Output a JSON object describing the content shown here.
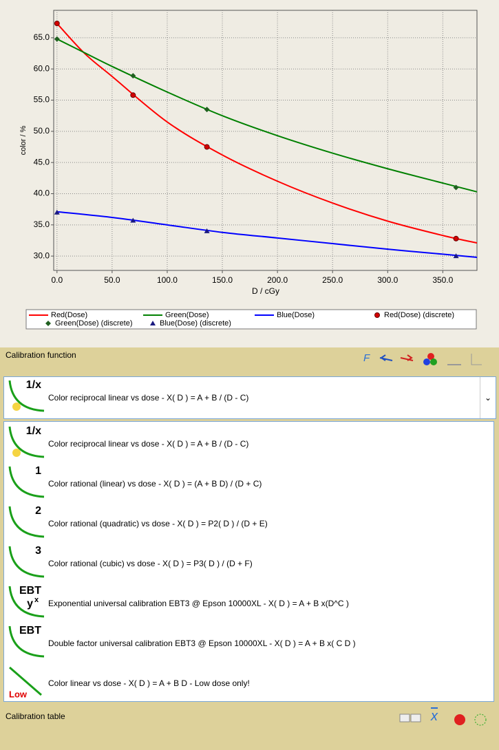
{
  "chart_data": {
    "type": "line",
    "y_label": "color / %",
    "x_label": "D / cGy",
    "xlim": [
      -3,
      381
    ],
    "ylim": [
      27.7,
      69.4
    ],
    "grid": true,
    "xticks": [
      {
        "value": 0,
        "label": "0.0"
      },
      {
        "value": 50,
        "label": "50.0"
      },
      {
        "value": 100,
        "label": "100.0"
      },
      {
        "value": 150,
        "label": "150.0"
      },
      {
        "value": 200,
        "label": "200.0"
      },
      {
        "value": 250,
        "label": "250.0"
      },
      {
        "value": 300,
        "label": "300.0"
      },
      {
        "value": 350,
        "label": "350.0"
      }
    ],
    "yticks": [
      {
        "value": 30,
        "label": "30.0"
      },
      {
        "value": 35,
        "label": "35.0"
      },
      {
        "value": 40,
        "label": "40.0"
      },
      {
        "value": 45,
        "label": "45.0"
      },
      {
        "value": 50,
        "label": "50.0"
      },
      {
        "value": 55,
        "label": "55.0"
      },
      {
        "value": 60,
        "label": "60.0"
      },
      {
        "value": 65,
        "label": "65.0"
      }
    ],
    "series": [
      {
        "name": "Red(Dose)",
        "color": "#ff0000",
        "marker": "line",
        "x": [
          0,
          25,
          50,
          100,
          150,
          200,
          250,
          300,
          350,
          381
        ],
        "values": [
          67.3,
          62.5,
          58.8,
          51.5,
          46.2,
          42.0,
          38.5,
          35.6,
          33.3,
          32.1
        ]
      },
      {
        "name": "Green(Dose)",
        "color": "#008000",
        "marker": "line",
        "x": [
          0,
          25,
          50,
          100,
          150,
          200,
          250,
          300,
          350,
          381
        ],
        "values": [
          64.8,
          62.6,
          60.4,
          56.3,
          52.5,
          49.3,
          46.5,
          44.0,
          41.7,
          40.3
        ]
      },
      {
        "name": "Blue(Dose)",
        "color": "#0000ff",
        "marker": "line",
        "x": [
          0,
          50,
          100,
          150,
          200,
          250,
          300,
          350,
          381
        ],
        "values": [
          37.1,
          36.2,
          35.0,
          33.8,
          32.9,
          32.0,
          31.1,
          30.3,
          29.8
        ]
      },
      {
        "name": "Red(Dose) (discrete)",
        "color": "#d40000",
        "marker": "circle",
        "x": [
          0,
          69,
          136,
          362
        ],
        "values": [
          67.3,
          55.8,
          47.5,
          32.8
        ]
      },
      {
        "name": "Green(Dose) (discrete)",
        "color": "#206020",
        "marker": "diamond",
        "x": [
          0,
          69,
          136,
          362
        ],
        "values": [
          64.8,
          58.9,
          53.5,
          41.0
        ]
      },
      {
        "name": "Blue(Dose) (discrete)",
        "color": "#1a1a80",
        "marker": "triangle",
        "x": [
          0,
          69,
          136,
          362
        ],
        "values": [
          37.0,
          35.7,
          34.0,
          30.0
        ]
      }
    ]
  },
  "panel": {
    "calibration_function": "Calibration function",
    "function_label": "F",
    "calibration_table": "Calibration table",
    "mean_label": "x"
  },
  "dropdown": {
    "selected": {
      "icon": "1/x",
      "text": "Color reciprocal linear vs dose - X( D ) = A + B / (D - C)"
    },
    "items": [
      {
        "icon": "1/x",
        "text": "Color reciprocal linear vs dose - X( D ) = A + B / (D - C)"
      },
      {
        "icon": "1",
        "text": "Color rational (linear) vs dose - X( D ) = (A + B D) / (D + C)"
      },
      {
        "icon": "2",
        "text": "Color rational (quadratic) vs dose - X( D ) = P2( D ) / (D + E)"
      },
      {
        "icon": "3",
        "text": "Color rational (cubic) vs dose - X( D ) = P3( D ) / (D + F)"
      },
      {
        "icon": "EBT",
        "icon2": "y",
        "icon_sup": "x",
        "text": "Exponential universal calibration EBT3 @ Epson 10000XL - X( D ) = A + B x(D^C )"
      },
      {
        "icon": "EBT",
        "text": "Double factor universal calibration EBT3 @ Epson 10000XL - X( D ) = A + B x( C D )"
      },
      {
        "icon_low": "Low",
        "text": "Color linear vs dose - X( D ) = A + B D - Low dose only!"
      }
    ]
  }
}
